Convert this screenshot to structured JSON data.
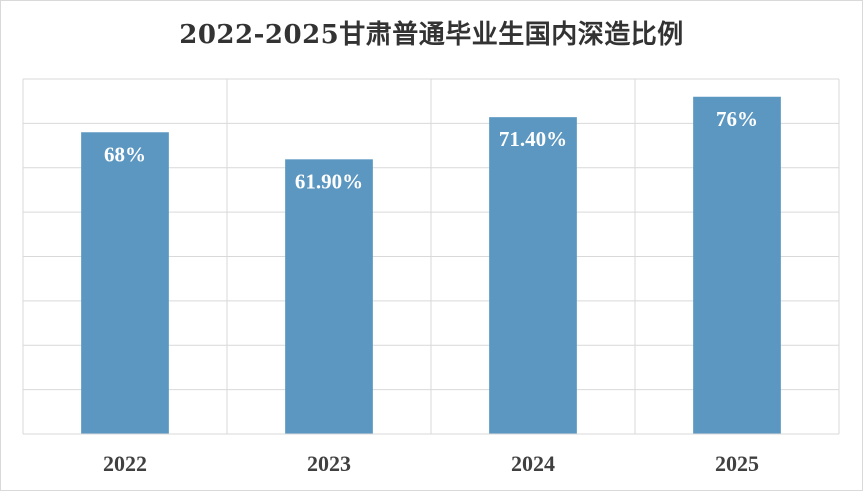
{
  "chart_data": {
    "type": "bar",
    "title": "2022-2025甘肃普通毕业生国内深造比例",
    "xlabel": "",
    "ylabel": "",
    "categories": [
      "2022",
      "2023",
      "2024",
      "2025"
    ],
    "values": [
      68,
      61.9,
      71.4,
      76
    ],
    "data_labels": [
      "68%",
      "61.90%",
      "71.40%",
      "76%"
    ],
    "ylim": [
      0,
      80
    ],
    "y_tick_step": 10,
    "y_tick_labels_visible": false,
    "grid": true,
    "legend": "none",
    "bar_color": "#5b97c1",
    "grid_color": "#d9d9d9"
  }
}
